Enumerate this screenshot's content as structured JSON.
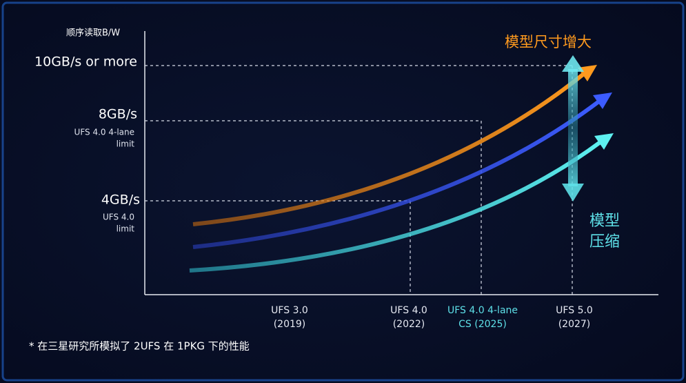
{
  "y_axis": {
    "title": "顺序读取B/W",
    "labels": [
      {
        "value": "10GB/s or more",
        "note": []
      },
      {
        "value": "8GB/s",
        "note": [
          "UFS 4.0 4-lane",
          "limit"
        ]
      },
      {
        "value": "4GB/s",
        "note": [
          "UFS 4.0",
          "limit"
        ]
      }
    ]
  },
  "x_axis": {
    "labels": [
      {
        "name": "UFS 3.0",
        "year": "(2019)"
      },
      {
        "name": "UFS 4.0",
        "year": "(2022)"
      },
      {
        "name": "UFS 4.0 4-lane",
        "year": "CS (2025)"
      },
      {
        "name": "UFS 5.0",
        "year": "(2027)"
      }
    ]
  },
  "annotations": {
    "up": "模型尺寸增大",
    "down": [
      "模型",
      "压缩"
    ]
  },
  "footnote": "* 在三星研究所模拟了 2UFS 在 1PKG 下的性能"
}
